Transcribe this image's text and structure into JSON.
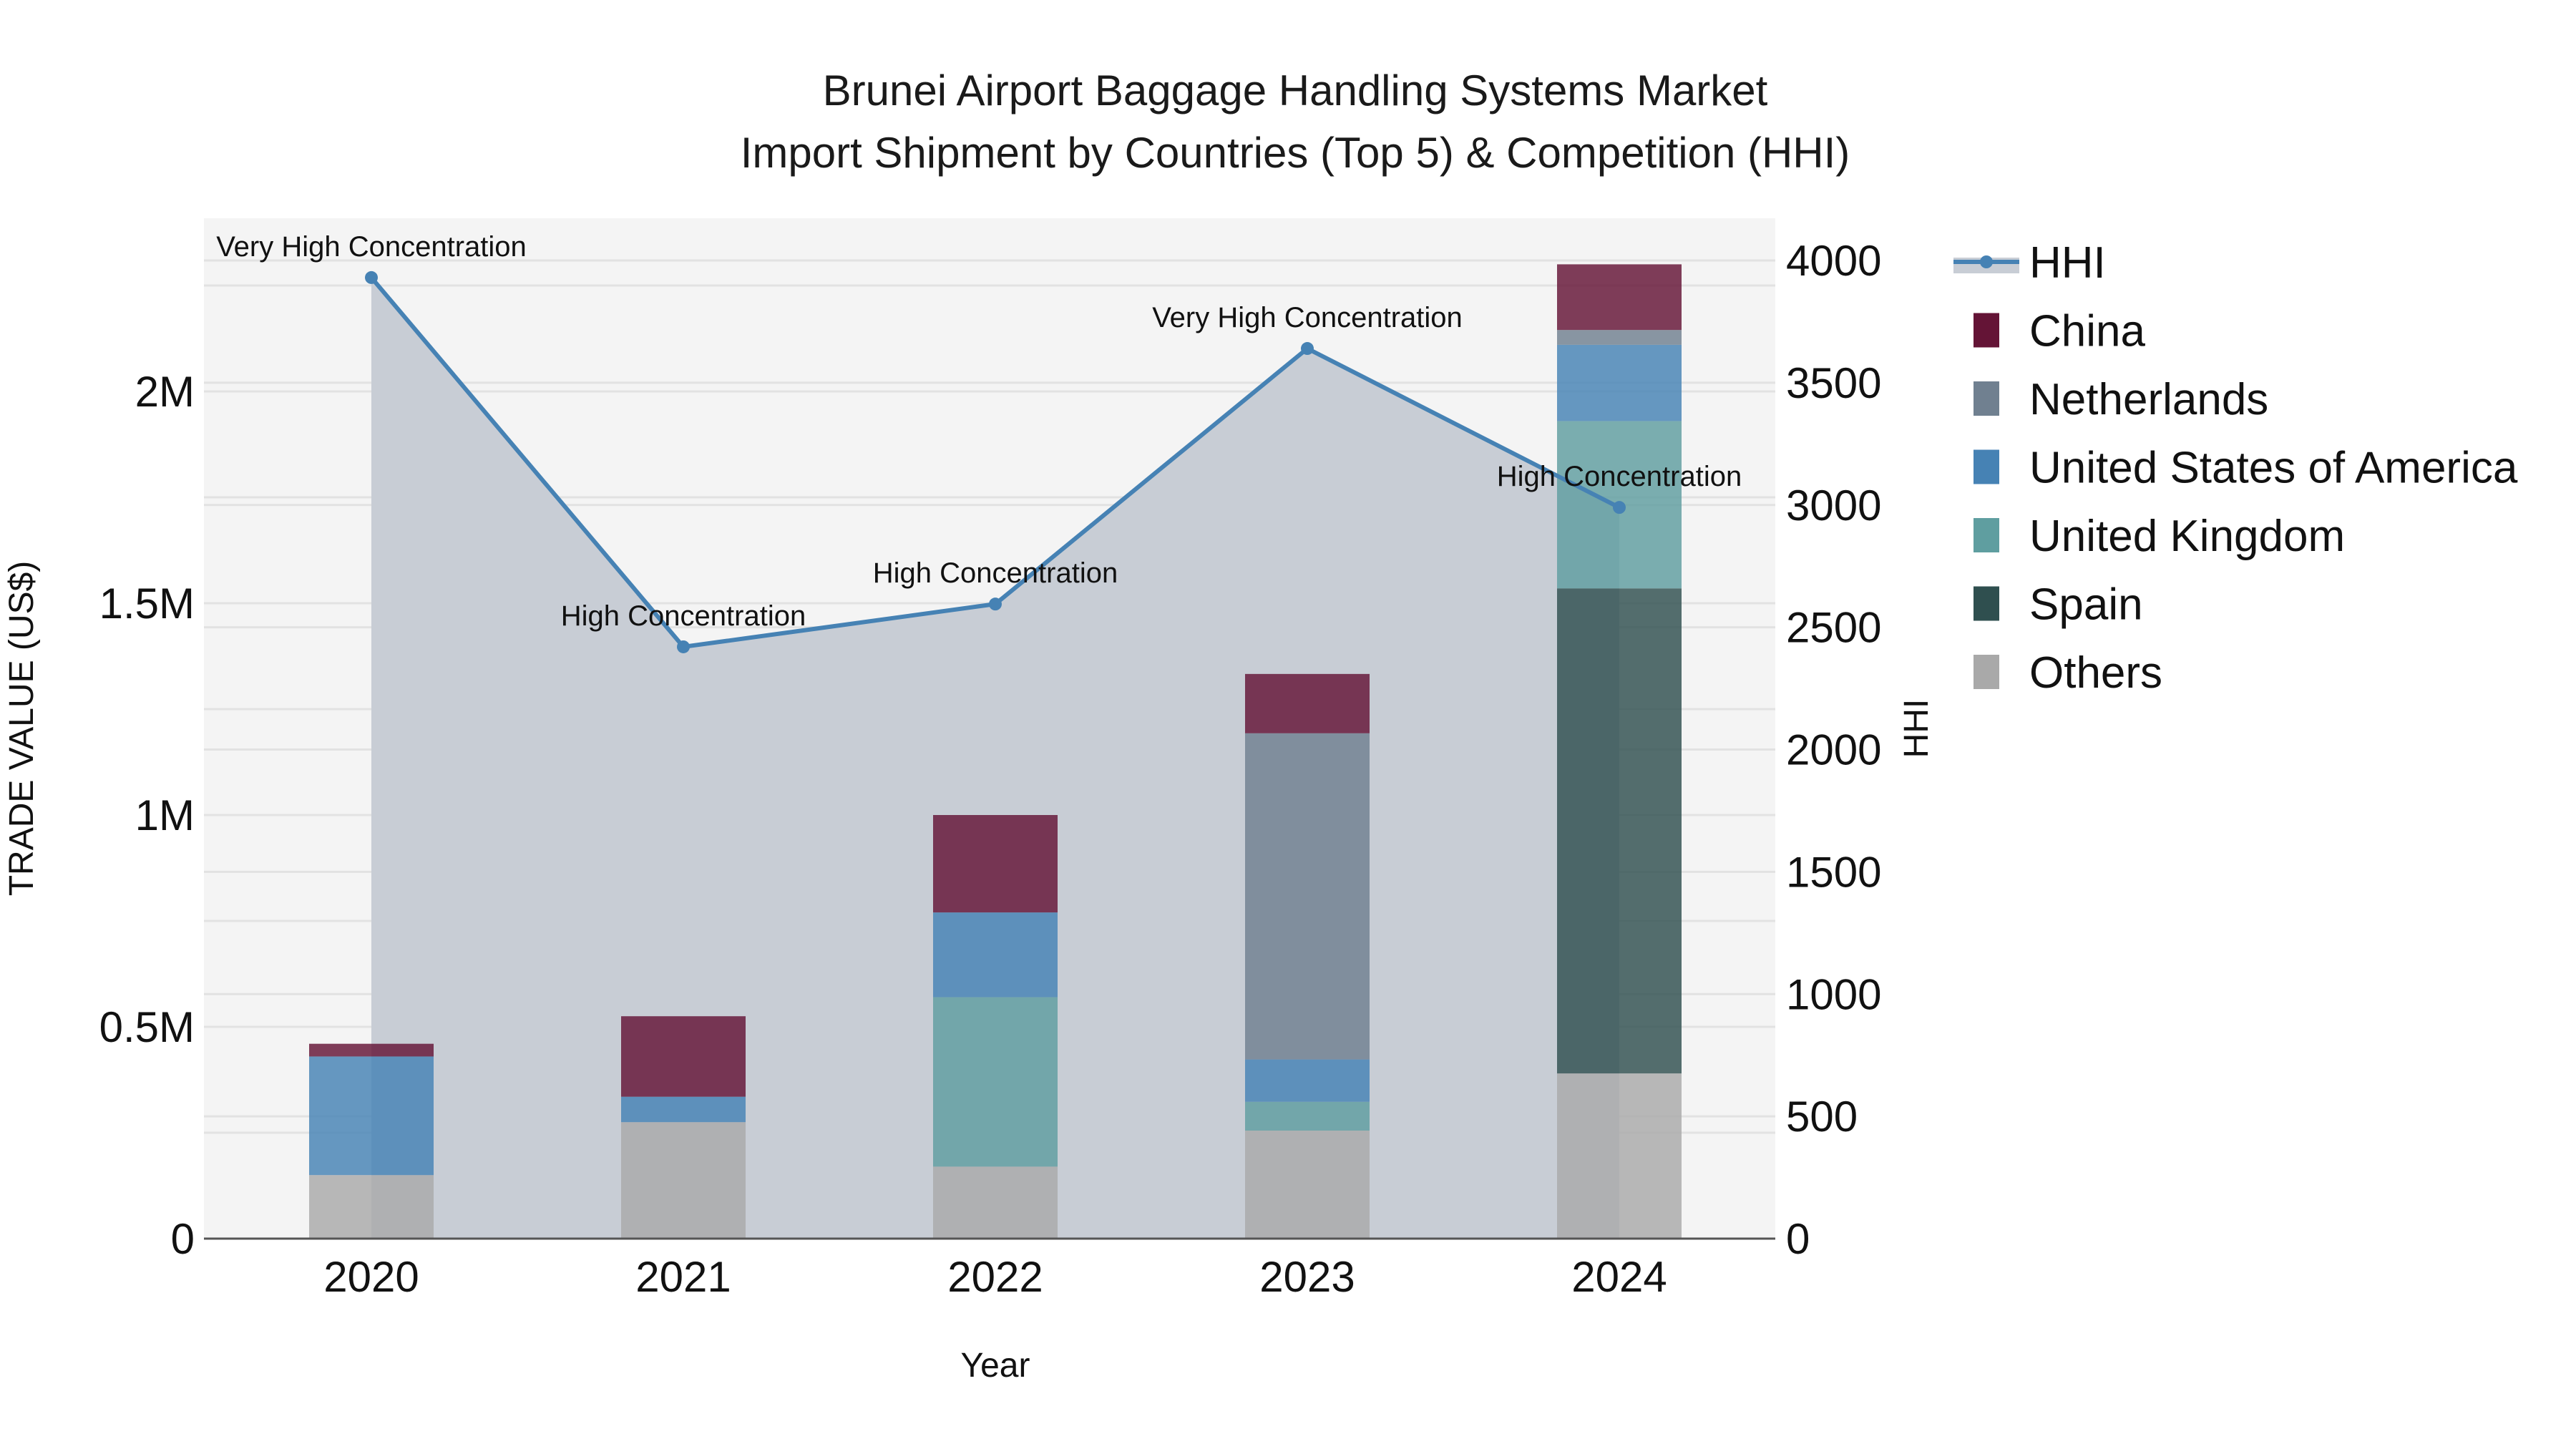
{
  "title": {
    "line1": "Brunei Airport Baggage Handling Systems Market",
    "line2": "Import Shipment by Countries (Top 5) & Competition (HHI)"
  },
  "axes": {
    "x_title": "Year",
    "y_left_title": "TRADE VALUE (US$)",
    "y_right_title": "HHI",
    "y_left_ticks": [
      "0",
      "0.5M",
      "1M",
      "1.5M",
      "2M"
    ],
    "y_right_ticks": [
      "0",
      "500",
      "1000",
      "1500",
      "2000",
      "2500",
      "3000",
      "3500",
      "4000"
    ],
    "x_ticks": [
      "2020",
      "2021",
      "2022",
      "2023",
      "2024"
    ]
  },
  "legend": [
    {
      "name": "HHI",
      "type": "line",
      "color": "#4682b4"
    },
    {
      "name": "China",
      "type": "bar",
      "color": "#641436"
    },
    {
      "name": "Netherlands",
      "type": "bar",
      "color": "#708090"
    },
    {
      "name": "United States of America",
      "type": "bar",
      "color": "#4682b4"
    },
    {
      "name": "United Kingdom",
      "type": "bar",
      "color": "#5f9ea0"
    },
    {
      "name": "Spain",
      "type": "bar",
      "color": "#2f4f4f"
    },
    {
      "name": "Others",
      "type": "bar",
      "color": "#a9a9a9"
    }
  ],
  "annotations": [
    {
      "year": "2020",
      "text": "Very High Concentration"
    },
    {
      "year": "2021",
      "text": "High Concentration"
    },
    {
      "year": "2022",
      "text": "High Concentration"
    },
    {
      "year": "2023",
      "text": "Very High Concentration"
    },
    {
      "year": "2024",
      "text": "High Concentration"
    }
  ],
  "colors": {
    "plot_bg": "#f4f4f4",
    "hhi_fill": "#c8cdd5",
    "grid": "#e2e2e2",
    "axis_line": "#555555"
  },
  "chart_data": {
    "type": "bar",
    "title": "Brunei Airport Baggage Handling Systems Market Import Shipment by Countries (Top 5) & Competition (HHI)",
    "xlabel": "Year",
    "ylabel": "TRADE VALUE (US$)",
    "y2label": "HHI",
    "categories": [
      "2020",
      "2021",
      "2022",
      "2023",
      "2024"
    ],
    "barmode": "stack",
    "ylim": [
      0,
      2410000
    ],
    "y2lim": [
      0,
      4170
    ],
    "grid": true,
    "legend_position": "right",
    "series": [
      {
        "name": "Others",
        "type": "bar",
        "axis": "left",
        "color": "#a9a9a9",
        "values": [
          150000,
          275000,
          170000,
          255000,
          390000
        ]
      },
      {
        "name": "Spain",
        "type": "bar",
        "axis": "left",
        "color": "#2f4f4f",
        "values": [
          0,
          0,
          0,
          0,
          1145000
        ]
      },
      {
        "name": "United Kingdom",
        "type": "bar",
        "axis": "left",
        "color": "#5f9ea0",
        "values": [
          0,
          0,
          400000,
          68000,
          395000
        ]
      },
      {
        "name": "United States of America",
        "type": "bar",
        "axis": "left",
        "color": "#4682b4",
        "values": [
          280000,
          60000,
          200000,
          100000,
          180000
        ]
      },
      {
        "name": "Netherlands",
        "type": "bar",
        "axis": "left",
        "color": "#708090",
        "values": [
          0,
          0,
          0,
          770000,
          35000
        ]
      },
      {
        "name": "China",
        "type": "bar",
        "axis": "left",
        "color": "#641436",
        "values": [
          30000,
          190000,
          230000,
          140000,
          155000
        ]
      },
      {
        "name": "HHI",
        "type": "line",
        "axis": "right",
        "fill": "tozeroy",
        "color": "#4682b4",
        "values": [
          3930,
          2420,
          2595,
          3640,
          2990
        ]
      }
    ],
    "annotations": [
      "Very High Concentration",
      "High Concentration",
      "High Concentration",
      "Very High Concentration",
      "High Concentration"
    ]
  }
}
